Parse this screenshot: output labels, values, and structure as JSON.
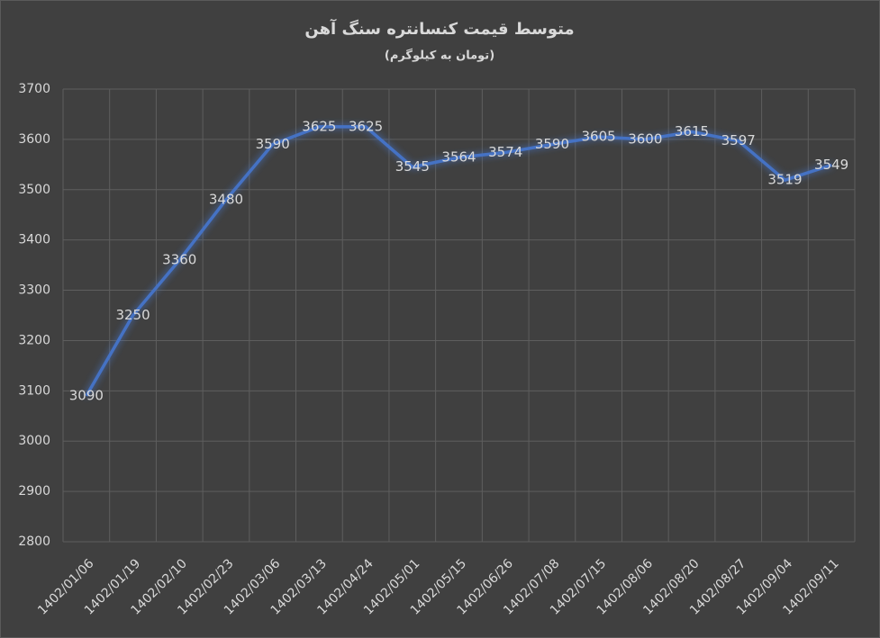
{
  "chart_data": {
    "type": "line",
    "title": "متوسط قیمت کنسانتره سنگ آهن",
    "subtitle": "(تومان به کیلوگرم)",
    "categories": [
      "1402/01/06",
      "1402/01/19",
      "1402/02/10",
      "1402/02/23",
      "1402/03/06",
      "1402/03/13",
      "1402/04/24",
      "1402/05/01",
      "1402/05/15",
      "1402/06/26",
      "1402/07/08",
      "1402/07/15",
      "1402/08/06",
      "1402/08/20",
      "1402/08/27",
      "1402/09/04",
      "1402/09/11"
    ],
    "values": [
      3090,
      3250,
      3360,
      3480,
      3590,
      3625,
      3625,
      3545,
      3564,
      3574,
      3590,
      3605,
      3600,
      3615,
      3597,
      3519,
      3549
    ],
    "color": "#4472c4",
    "ylim": [
      2800,
      3700
    ],
    "yticks": [
      2800,
      2900,
      3000,
      3100,
      3200,
      3300,
      3400,
      3500,
      3600,
      3700
    ],
    "grid": true
  }
}
